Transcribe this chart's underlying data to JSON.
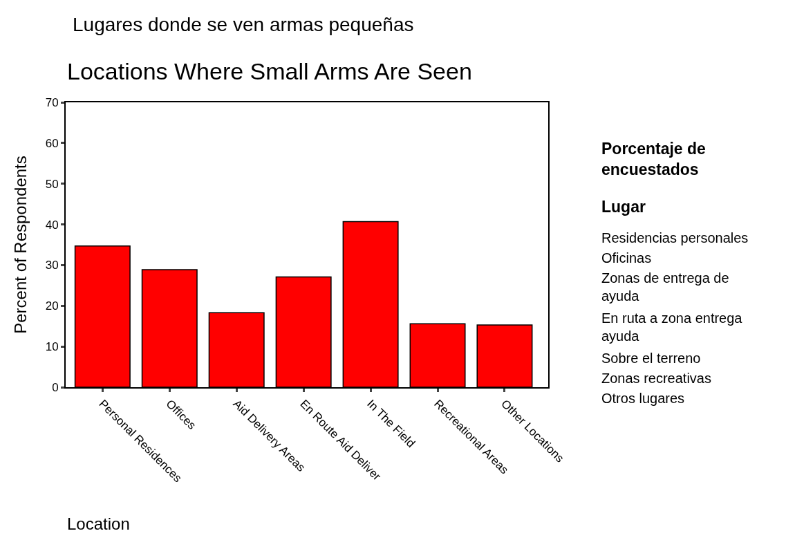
{
  "chart_data": {
    "type": "bar",
    "title": "Locations Where Small Arms Are Seen",
    "subtitle": "Lugares donde se ven armas pequeñas",
    "xlabel": "Location",
    "ylabel": "Percent of Respondents",
    "categories": [
      "Personal Residences",
      "Offices",
      "Aid Delivery Areas",
      "En Route Aid Deliver",
      "In The Field",
      "Recreational Areas",
      "Other Locations"
    ],
    "values": [
      34.7,
      28.9,
      18.3,
      27.1,
      40.7,
      15.6,
      15.3
    ],
    "color": "#ff0000",
    "ylim": [
      0,
      70
    ],
    "yticks": [
      0,
      10,
      20,
      30,
      40,
      50,
      60,
      70
    ],
    "annotations": [
      "Porcentaje de encuestados",
      "Lugar",
      "Residencias personales",
      "Oficinas",
      "Zonas de entrega de ayuda",
      "En ruta a zona entrega ayuda",
      "Sobre el terreno",
      "Zonas recreativas",
      "Otros lugares"
    ]
  }
}
